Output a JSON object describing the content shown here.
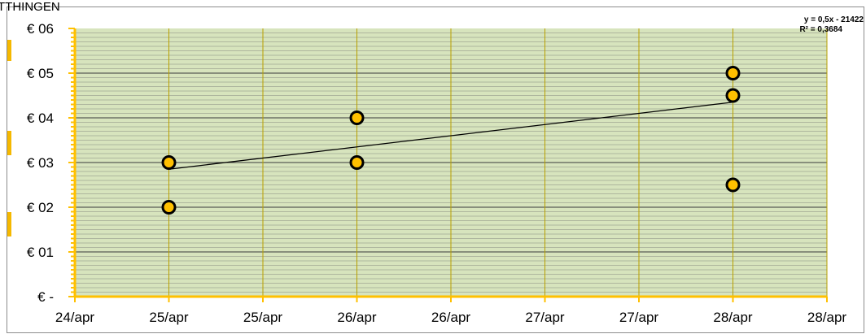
{
  "chart_data": {
    "type": "scatter",
    "title": "TTHINGEN",
    "x_tick_labels": [
      "24/apr",
      "25/apr",
      "25/apr",
      "26/apr",
      "26/apr",
      "27/apr",
      "27/apr",
      "28/apr",
      "28/apr"
    ],
    "y_tick_labels": [
      "€ -",
      "€ 01",
      "€ 02",
      "€ 03",
      "€ 04",
      "€ 05",
      "€ 06"
    ],
    "xlim": [
      24,
      28
    ],
    "ylim": [
      0,
      6
    ],
    "points": [
      {
        "x": 24.5,
        "y": 3.0
      },
      {
        "x": 24.5,
        "y": 2.0
      },
      {
        "x": 25.5,
        "y": 4.0
      },
      {
        "x": 25.5,
        "y": 3.0
      },
      {
        "x": 27.5,
        "y": 5.0
      },
      {
        "x": 27.5,
        "y": 4.5
      },
      {
        "x": 27.5,
        "y": 2.5
      }
    ],
    "trendline": {
      "x": [
        24.5,
        27.5
      ],
      "y": [
        2.85,
        4.35
      ]
    },
    "equation_line1": "y = 0,5x - 21422",
    "equation_line2": "R² = 0,3684",
    "grid": true,
    "colors": {
      "plot_background": "#d7e4bd",
      "vertical_grid": "#b8a000",
      "horizontal_grid": "#6b6b6b",
      "axis": "#ffc000",
      "marker_fill": "#ffc000",
      "marker_stroke": "#000000",
      "trendline": "#000000"
    }
  }
}
